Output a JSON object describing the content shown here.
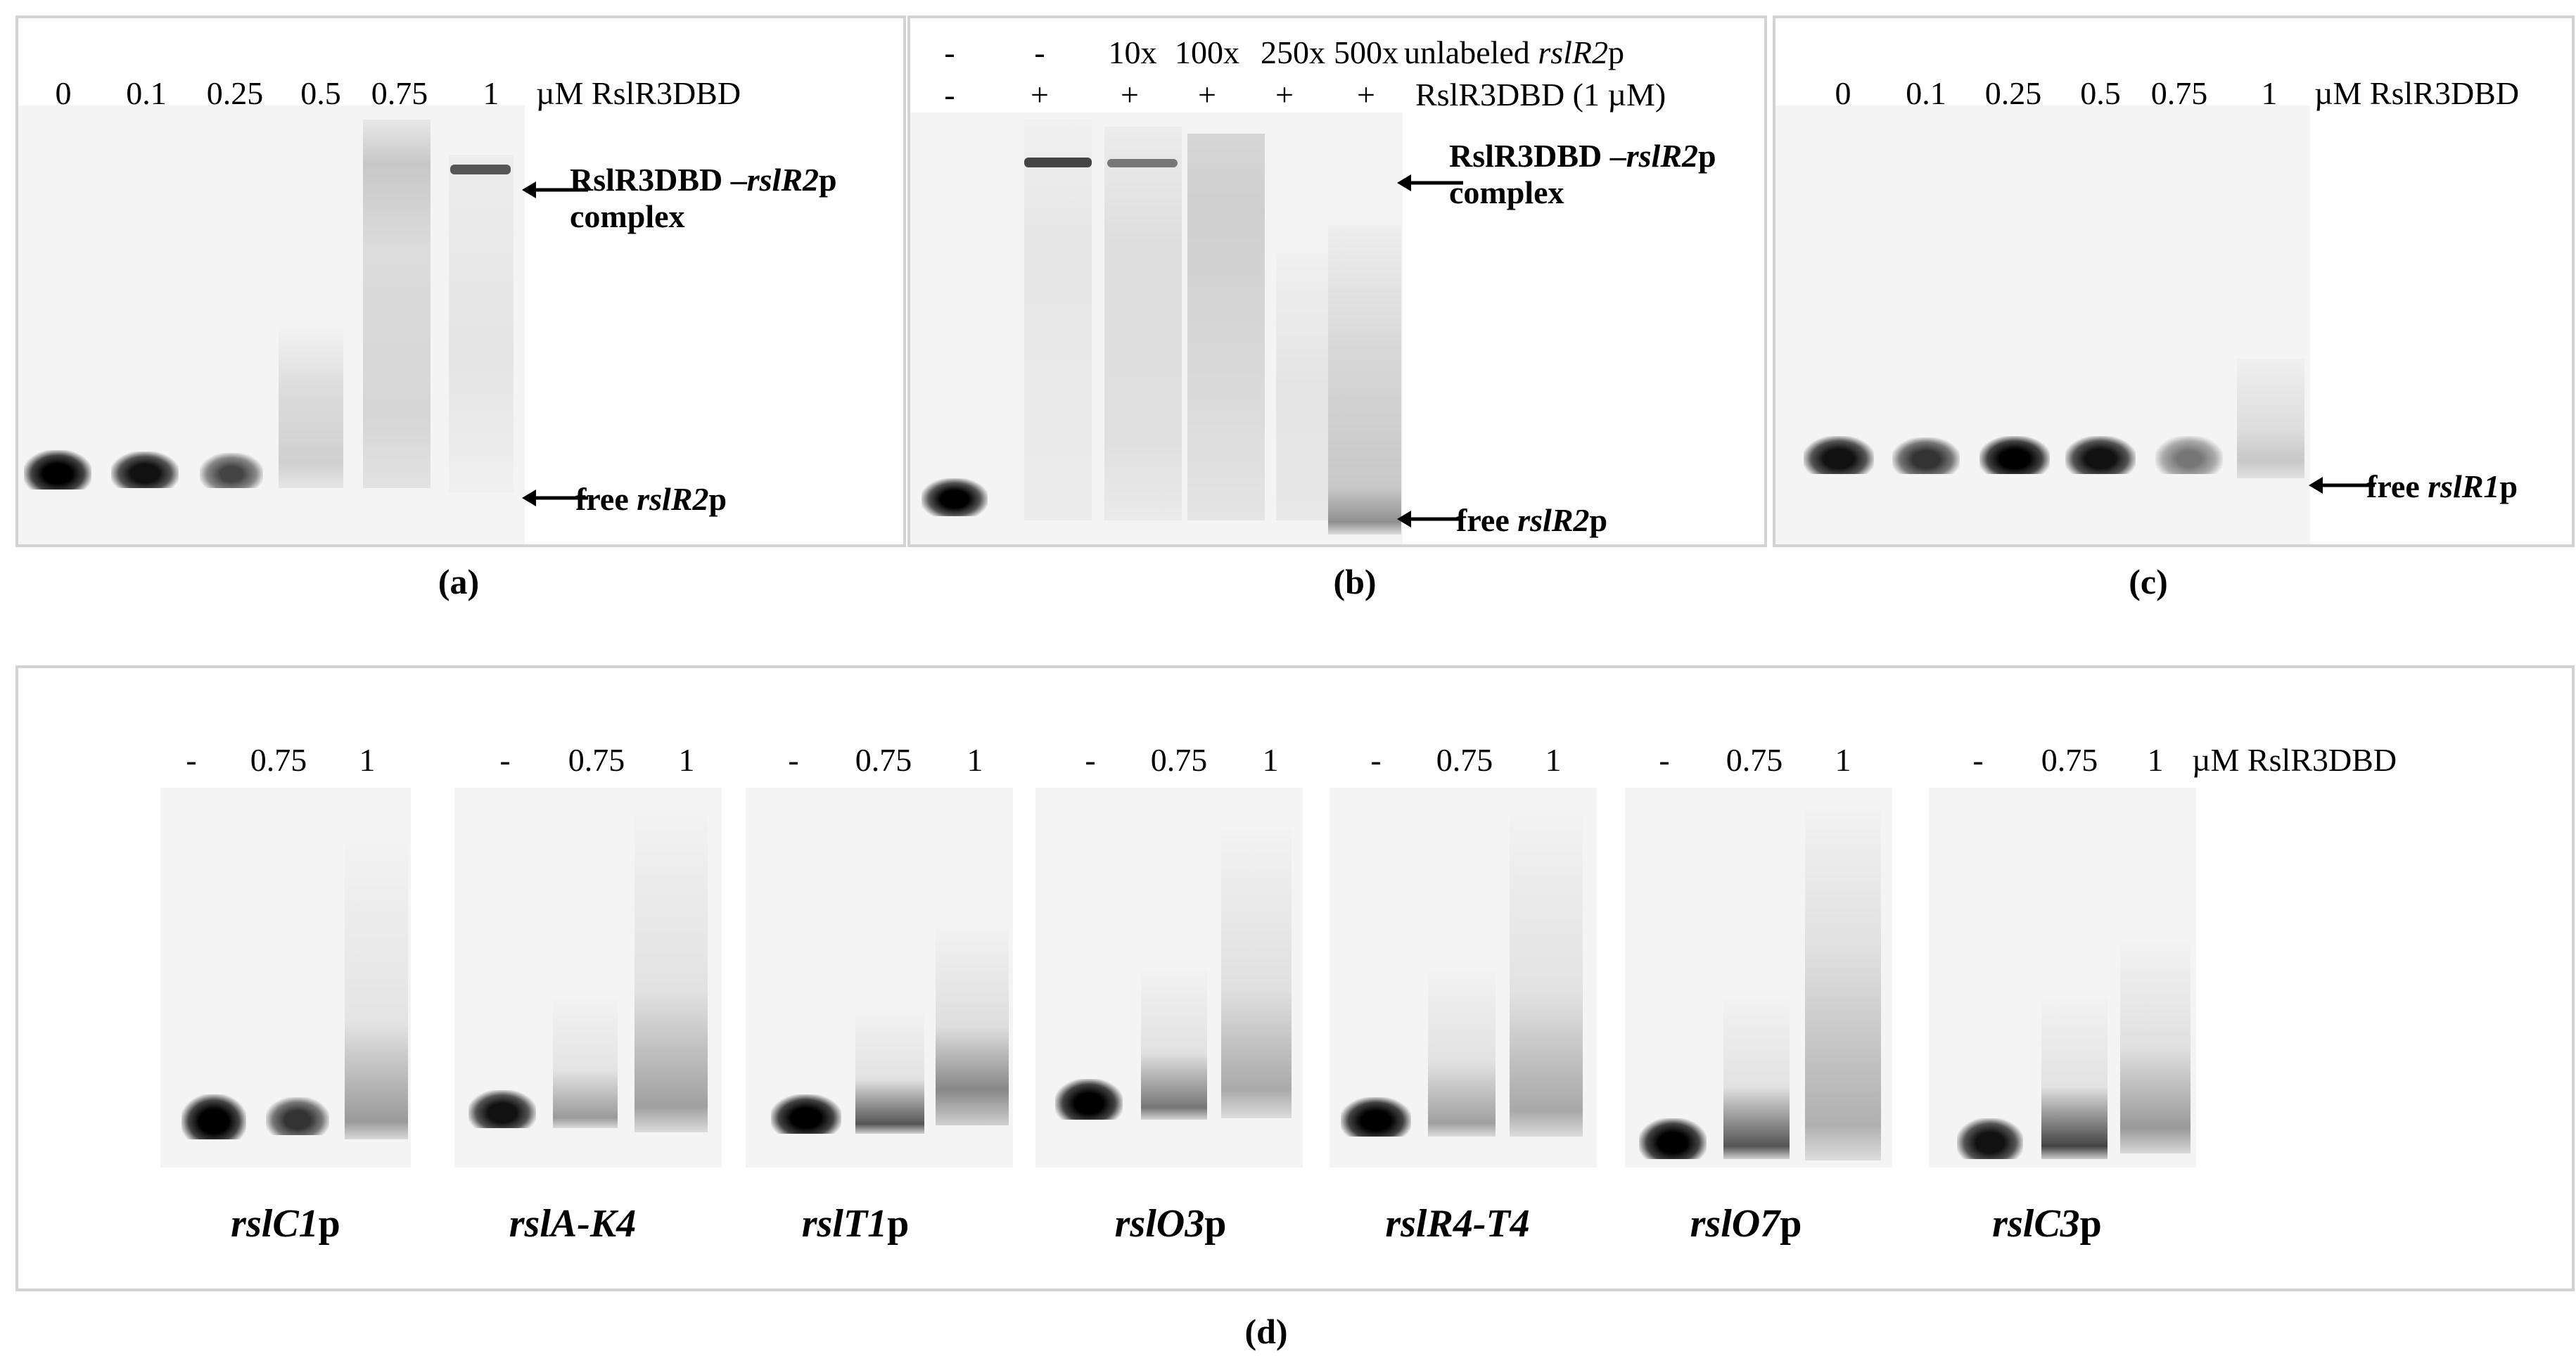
{
  "panels": {
    "a": {
      "caption": "(a)",
      "lane_labels": [
        "0",
        "0.1",
        "0.25",
        "0.5",
        "0.75",
        "1"
      ],
      "unit_label": "µM RslR3DBD",
      "complex_label": {
        "protein": "RslR3DBD –",
        "gene": "rslR2",
        "suffix": "p",
        "line2": "complex"
      },
      "free_label": {
        "prefix": "free ",
        "gene": "rslR2",
        "suffix": "p"
      }
    },
    "b": {
      "caption": "(b)",
      "competitor_row": [
        "-",
        "-",
        "10x",
        "100x",
        "250x",
        "500x"
      ],
      "competitor_label": {
        "prefix": "unlabeled ",
        "gene": "rslR2",
        "suffix": "p"
      },
      "protein_row": [
        "-",
        "+",
        "+",
        "+",
        "+",
        "+"
      ],
      "protein_label": "RslR3DBD (1 µM)",
      "complex_label": {
        "protein": "RslR3DBD –",
        "gene": "rslR2",
        "suffix": "p",
        "line2": "complex"
      },
      "free_label": {
        "prefix": "free ",
        "gene": "rslR2",
        "suffix": "p"
      }
    },
    "c": {
      "caption": "(c)",
      "lane_labels": [
        "0",
        "0.1",
        "0.25",
        "0.5",
        "0.75",
        "1"
      ],
      "unit_label": "µM RslR3DBD",
      "free_label": {
        "prefix": "free ",
        "gene": "rslR1",
        "suffix": "p"
      }
    },
    "d": {
      "caption": "(d)",
      "lane_labels": [
        "-",
        "0.75",
        "1"
      ],
      "unit_label": "µM RslR3DBD",
      "gels": [
        {
          "gene": "rslC1",
          "suffix": "p"
        },
        {
          "gene": "rslA-K4",
          "suffix": ""
        },
        {
          "gene": "rslT1",
          "suffix": "p"
        },
        {
          "gene": "rslO3",
          "suffix": "p"
        },
        {
          "gene": "rslR4-T4",
          "suffix": ""
        },
        {
          "gene": "rslO7",
          "suffix": "p"
        },
        {
          "gene": "rslC3",
          "suffix": "p"
        }
      ]
    }
  },
  "colors": {
    "frame": "#d2d2d2",
    "gel_bg": "#f4f4f4",
    "band": "#111111"
  }
}
